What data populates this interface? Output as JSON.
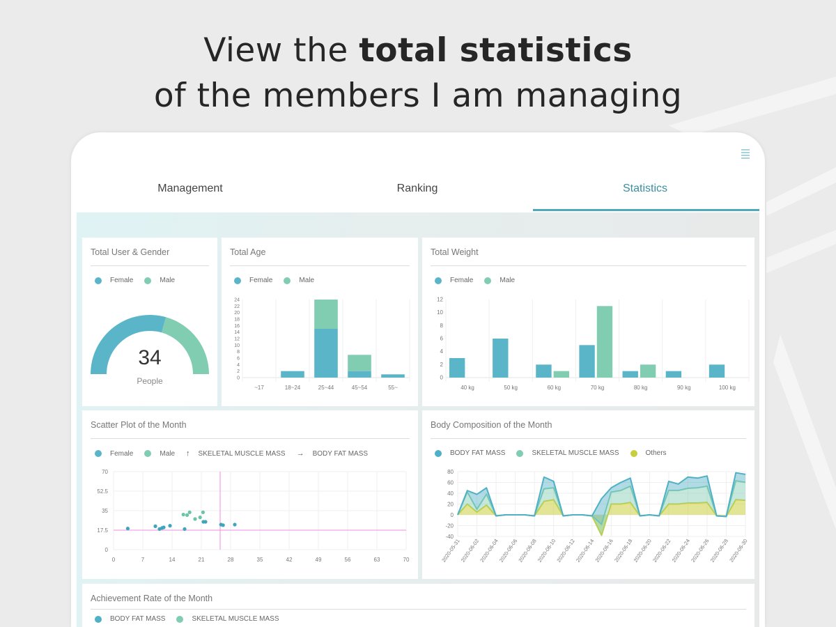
{
  "headline": {
    "line1_normal": "View the ",
    "line1_bold": "total statistics",
    "line2": "of the members I am managing"
  },
  "tabs": [
    {
      "label": "Management"
    },
    {
      "label": "Ranking"
    },
    {
      "label": "Statistics",
      "active": true
    }
  ],
  "colors": {
    "female": "#5bb5c9",
    "male": "#80cdb2",
    "others": "#c8cf3e",
    "accent": "#3a8fa0",
    "guide": "#f08ce0"
  },
  "cards": {
    "gender": {
      "title": "Total User & Gender",
      "legend": [
        "Female",
        "Male"
      ],
      "total": "34",
      "unit": "People"
    },
    "age": {
      "title": "Total Age",
      "legend": [
        "Female",
        "Male"
      ]
    },
    "weight": {
      "title": "Total Weight",
      "legend": [
        "Female",
        "Male"
      ]
    },
    "scatter": {
      "title": "Scatter Plot of the Month",
      "legend": [
        "Female",
        "Male",
        "SKELETAL MUSCLE MASS",
        "BODY FAT MASS"
      ]
    },
    "body": {
      "title": "Body Composition of the Month",
      "legend": [
        "BODY FAT MASS",
        "SKELETAL MUSCLE MASS",
        "Others"
      ]
    },
    "achievement": {
      "title": "Achievement Rate of the Month",
      "legend": [
        "BODY FAT MASS",
        "SKELETAL MUSCLE MASS"
      ]
    }
  },
  "chart_data": [
    {
      "id": "gender",
      "type": "pie",
      "title": "Total User & Gender",
      "series": [
        {
          "name": "Female",
          "value": 20
        },
        {
          "name": "Male",
          "value": 14
        }
      ]
    },
    {
      "id": "age",
      "type": "bar",
      "stacked": true,
      "title": "Total Age",
      "categories": [
        "~17",
        "18~24",
        "25~44",
        "45~54",
        "55~"
      ],
      "series": [
        {
          "name": "Female",
          "values": [
            0,
            2,
            15,
            2,
            1
          ]
        },
        {
          "name": "Male",
          "values": [
            0,
            0,
            9,
            5,
            0
          ]
        }
      ],
      "ylim": [
        0,
        24
      ],
      "yticks": [
        "0",
        "2",
        "4",
        "6",
        "8",
        "10",
        "12",
        "14",
        "16",
        "18",
        "20",
        "22",
        "24"
      ]
    },
    {
      "id": "weight",
      "type": "bar",
      "title": "Total Weight",
      "categories": [
        "40 kg",
        "50 kg",
        "60 kg",
        "70 kg",
        "80 kg",
        "90 kg",
        "100 kg"
      ],
      "series": [
        {
          "name": "Female",
          "values": [
            3,
            6,
            2,
            5,
            1,
            1,
            2
          ]
        },
        {
          "name": "Male",
          "values": [
            0,
            0,
            1,
            11,
            2,
            0,
            0
          ]
        }
      ],
      "ylim": [
        0,
        12
      ],
      "yticks": [
        "0",
        "2",
        "4",
        "6",
        "8",
        "10",
        "12"
      ]
    },
    {
      "id": "scatter",
      "type": "scatter",
      "title": "Scatter Plot of the Month",
      "xlim": [
        0,
        70
      ],
      "ylim": [
        0,
        70
      ],
      "xticks": [
        "0",
        "7",
        "14",
        "21",
        "28",
        "35",
        "42",
        "49",
        "56",
        "63",
        "70"
      ],
      "yticks": [
        "0",
        "17.5",
        "35",
        "52.5",
        "70"
      ],
      "guides": {
        "x": 25.5,
        "y": 17.5
      },
      "series": [
        {
          "name": "Female",
          "points": [
            [
              3.4,
              19
            ],
            [
              10,
              21
            ],
            [
              11,
              18.5
            ],
            [
              11.6,
              19.5
            ],
            [
              12,
              20
            ],
            [
              13.5,
              21.5
            ],
            [
              17,
              18.5
            ],
            [
              21.5,
              25
            ],
            [
              22,
              25
            ],
            [
              25.7,
              22.5
            ],
            [
              26.2,
              22
            ],
            [
              29,
              22.5
            ]
          ]
        },
        {
          "name": "Male",
          "points": [
            [
              16.7,
              31.5
            ],
            [
              17.6,
              31
            ],
            [
              18.2,
              33.5
            ],
            [
              19.5,
              27.5
            ],
            [
              20.7,
              29
            ],
            [
              21.4,
              33.5
            ]
          ]
        }
      ]
    },
    {
      "id": "body",
      "type": "area",
      "stacked": true,
      "title": "Body Composition of the Month",
      "ylim": [
        -40,
        80
      ],
      "yticks": [
        "-40",
        "-20",
        "0",
        "20",
        "40",
        "60",
        "80"
      ],
      "xticks": [
        "2020-05-31",
        "2020-06-02",
        "2020-06-04",
        "2020-06-06",
        "2020-06-08",
        "2020-06-10",
        "2020-06-12",
        "2020-06-14",
        "2020-06-16",
        "2020-06-18",
        "2020-06-20",
        "2020-06-22",
        "2020-06-24",
        "2020-06-26",
        "2020-06-28",
        "2020-06-30"
      ],
      "series": [
        {
          "name": "Others",
          "values": [
            0,
            20,
            5,
            18,
            -2,
            0,
            0,
            0,
            -2,
            25,
            28,
            -2,
            0,
            0,
            -2,
            -38,
            20,
            20,
            23,
            -2,
            0,
            -2,
            20,
            20,
            22,
            22,
            23,
            -2,
            -3,
            28,
            27
          ]
        },
        {
          "name": "SKELETAL MUSCLE MASS",
          "values": [
            0,
            22,
            5,
            20,
            0,
            0,
            0,
            0,
            0,
            23,
            22,
            0,
            0,
            0,
            0,
            20,
            22,
            25,
            30,
            0,
            0,
            0,
            25,
            25,
            27,
            28,
            30,
            0,
            0,
            35,
            33
          ]
        },
        {
          "name": "BODY FAT MASS",
          "values": [
            0,
            3,
            28,
            12,
            0,
            0,
            0,
            0,
            0,
            22,
            12,
            0,
            0,
            0,
            0,
            48,
            8,
            15,
            15,
            0,
            0,
            0,
            17,
            12,
            21,
            18,
            19,
            0,
            0,
            15,
            15
          ]
        }
      ]
    }
  ]
}
